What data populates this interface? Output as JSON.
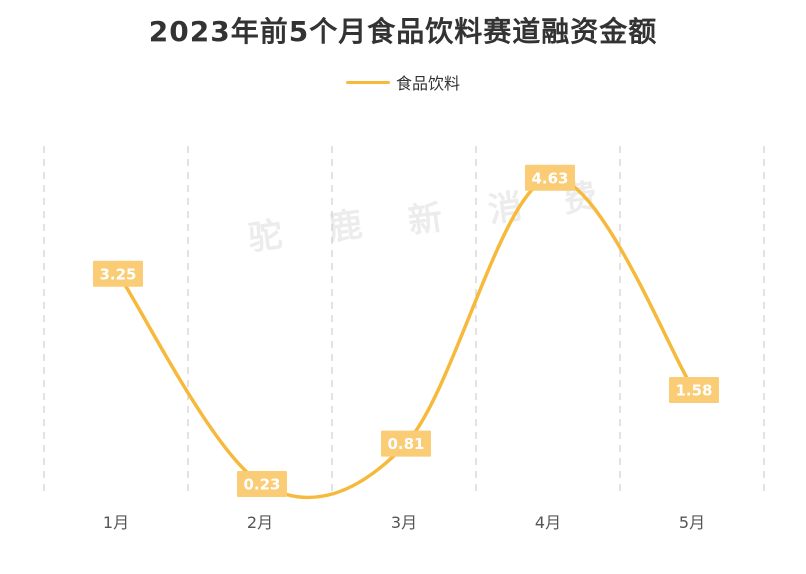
{
  "title": "2023年前5个月食品饮料赛道融资金额",
  "watermark": [
    "驼",
    "鹿",
    "新",
    "消",
    "费"
  ],
  "colors": {
    "line": "#F6B93B",
    "label_bg": "#F9CC75",
    "grid": "#d0d0d0"
  },
  "chart_data": {
    "type": "line",
    "title": "2023年前5个月食品饮料赛道融资金额",
    "categories": [
      "1月",
      "2月",
      "3月",
      "4月",
      "5月"
    ],
    "series": [
      {
        "name": "食品饮料",
        "values": [
          3.25,
          0.23,
          0.81,
          4.63,
          1.58
        ],
        "labels": [
          "3.25",
          "0.23",
          "0.81",
          "4.63",
          "1.58"
        ]
      }
    ],
    "ylim": [
      0,
      5
    ],
    "xlabel": "",
    "ylabel": "",
    "grid": "vertical-dashed",
    "legend_position": "top-center",
    "smooth": true
  }
}
